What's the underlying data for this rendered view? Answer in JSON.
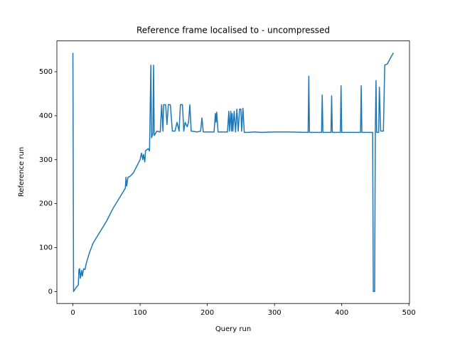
{
  "chart_data": {
    "type": "line",
    "title": "Reference frame localised to - uncompressed",
    "x_label": "Query run",
    "y_label": "Reference run",
    "color": "#1f77b4",
    "x": [
      0,
      1,
      5,
      8,
      9,
      10,
      11,
      13,
      14,
      16,
      18,
      20,
      25,
      30,
      40,
      50,
      60,
      70,
      78,
      79,
      80,
      82,
      85,
      90,
      95,
      100,
      102,
      104,
      105,
      107,
      108,
      112,
      114,
      116,
      117,
      119,
      120,
      121,
      125,
      130,
      132,
      134,
      135,
      138,
      140,
      142,
      145,
      148,
      152,
      155,
      158,
      160,
      163,
      165,
      167,
      170,
      172,
      174,
      176,
      185,
      190,
      192,
      194,
      210,
      212,
      213,
      214,
      216,
      230,
      232,
      233,
      235,
      236,
      237,
      238,
      240,
      242,
      244,
      246,
      248,
      250,
      251,
      253,
      255,
      260,
      270,
      280,
      300,
      320,
      350,
      351,
      352,
      370,
      371,
      372,
      384,
      385,
      386,
      398,
      399,
      400,
      428,
      429,
      430,
      446,
      447,
      449,
      450,
      451,
      452,
      455,
      456,
      458,
      462,
      464,
      468,
      472,
      477
    ],
    "values": [
      543,
      0,
      10,
      15,
      50,
      52,
      30,
      48,
      35,
      52,
      50,
      65,
      90,
      110,
      135,
      160,
      190,
      215,
      235,
      260,
      240,
      260,
      262,
      270,
      285,
      300,
      315,
      300,
      312,
      295,
      320,
      325,
      320,
      515,
      350,
      360,
      515,
      355,
      365,
      363,
      425,
      365,
      425,
      425,
      380,
      425,
      425,
      365,
      365,
      385,
      365,
      425,
      425,
      365,
      385,
      375,
      385,
      425,
      365,
      363,
      365,
      395,
      363,
      363,
      405,
      385,
      408,
      363,
      363,
      410,
      365,
      410,
      365,
      405,
      365,
      410,
      363,
      415,
      365,
      415,
      415,
      365,
      417,
      362,
      362,
      363,
      362,
      363,
      363,
      362,
      490,
      362,
      362,
      447,
      362,
      362,
      445,
      362,
      362,
      468,
      362,
      362,
      468,
      362,
      362,
      0,
      0,
      365,
      480,
      362,
      362,
      465,
      365,
      365,
      515,
      518,
      530,
      543
    ],
    "xlim": [
      -23.85,
      500.85
    ],
    "ylim": [
      -27.15,
      570.15
    ],
    "xticks": [
      0,
      100,
      200,
      300,
      400,
      500
    ],
    "yticks": [
      0,
      100,
      200,
      300,
      400,
      500
    ]
  }
}
